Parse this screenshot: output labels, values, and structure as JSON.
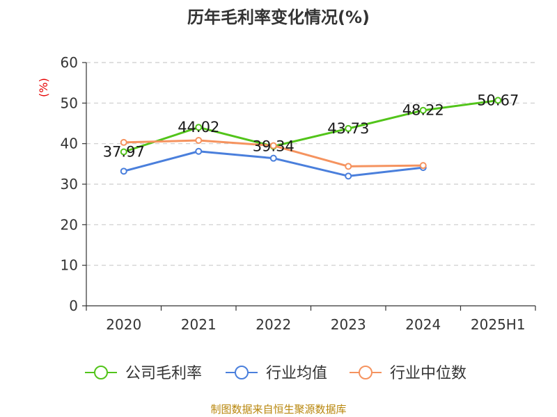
{
  "chart_data": {
    "type": "line",
    "title": "历年毛利率变化情况(%)",
    "ylabel": "(%)",
    "xlabel": "",
    "categories": [
      "2020",
      "2021",
      "2022",
      "2023",
      "2024",
      "2025H1"
    ],
    "ylim": [
      0,
      60
    ],
    "yticks": [
      "0",
      "10",
      "20",
      "30",
      "40",
      "50",
      "60"
    ],
    "grid": true,
    "legend_position": "bottom",
    "series": [
      {
        "name": "公司毛利率",
        "color": "#52c41a",
        "values": [
          37.97,
          44.02,
          39.34,
          43.73,
          48.22,
          50.67
        ],
        "labels": [
          "37.97",
          "44.02",
          "39.34",
          "43.73",
          "48.22",
          "50.67"
        ]
      },
      {
        "name": "行业均值",
        "color": "#4a7fdc",
        "values": [
          33.2,
          38.1,
          36.4,
          32.0,
          34.1,
          null
        ]
      },
      {
        "name": "行业中位数",
        "color": "#f5935f",
        "values": [
          40.3,
          40.8,
          39.5,
          34.4,
          34.6,
          null
        ]
      }
    ]
  },
  "footer": {
    "source": "制图数据来自恒生聚源数据库"
  }
}
